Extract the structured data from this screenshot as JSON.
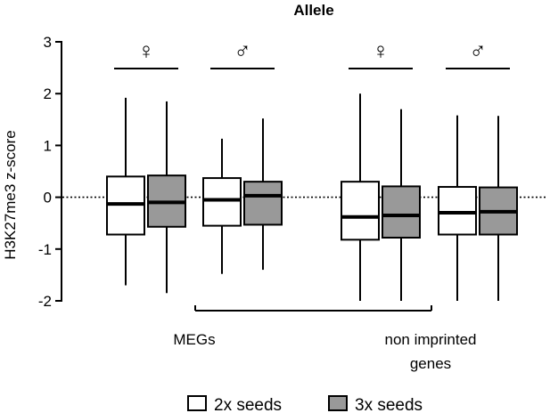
{
  "chart_data": {
    "type": "box",
    "title": "Allele",
    "ylabel": "H3K27me3 z-score",
    "ylim": [
      -2,
      3
    ],
    "yticks": [
      "-2",
      "-1",
      "0",
      "1",
      "2",
      "3"
    ],
    "reference_line": {
      "y": 0,
      "style": "dotted"
    },
    "group_headers": [
      "♀",
      "♂",
      "♀",
      "♂"
    ],
    "category_labels": [
      "MEGs",
      "non imprinted genes"
    ],
    "category_label_lines": [
      [
        "MEGs"
      ],
      [
        "non imprinted",
        "genes"
      ]
    ],
    "series": [
      {
        "name": "2x seeds",
        "color": "#ffffff",
        "boxes": [
          {
            "min": -1.7,
            "q1": -0.72,
            "median": -0.13,
            "q3": 0.4,
            "max": 1.92
          },
          {
            "min": -1.48,
            "q1": -0.55,
            "median": -0.05,
            "q3": 0.37,
            "max": 1.13
          },
          {
            "min": -2.0,
            "q1": -0.82,
            "median": -0.38,
            "q3": 0.3,
            "max": 2.0
          },
          {
            "min": -2.0,
            "q1": -0.72,
            "median": -0.3,
            "q3": 0.2,
            "max": 1.58
          }
        ]
      },
      {
        "name": "3x seeds",
        "color": "#999999",
        "boxes": [
          {
            "min": -1.85,
            "q1": -0.57,
            "median": -0.1,
            "q3": 0.42,
            "max": 1.85
          },
          {
            "min": -1.4,
            "q1": -0.53,
            "median": 0.03,
            "q3": 0.3,
            "max": 1.52
          },
          {
            "min": -2.0,
            "q1": -0.78,
            "median": -0.35,
            "q3": 0.21,
            "max": 1.7
          },
          {
            "min": -2.0,
            "q1": -0.72,
            "median": -0.28,
            "q3": 0.19,
            "max": 1.57
          }
        ]
      }
    ],
    "legend": {
      "placement": "bottom"
    }
  }
}
